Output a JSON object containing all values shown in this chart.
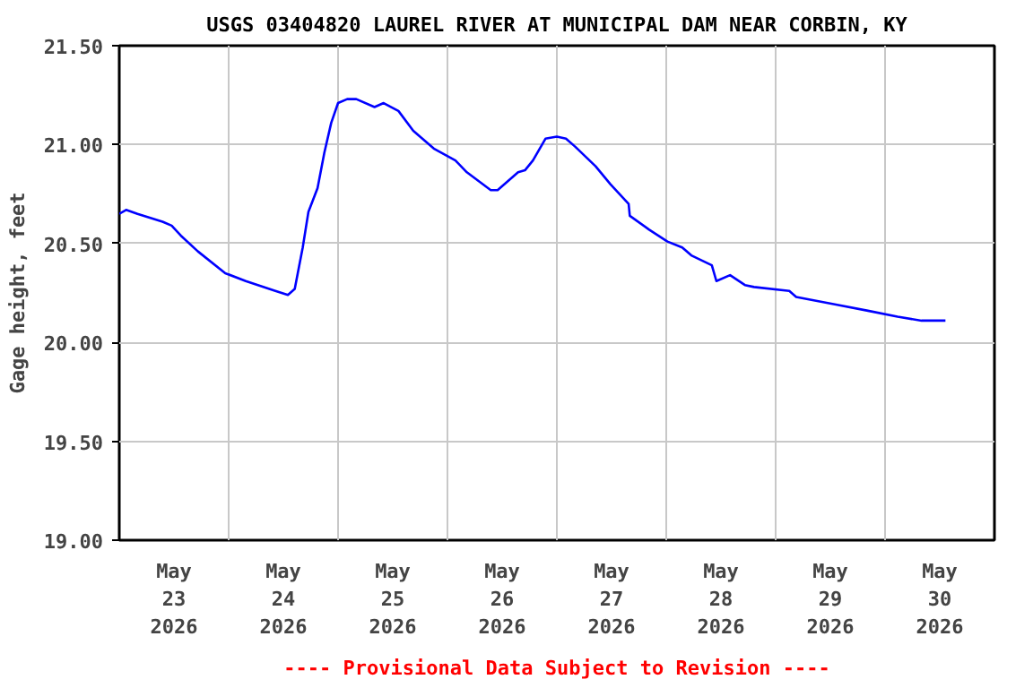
{
  "chart_data": {
    "type": "line",
    "title": "USGS 03404820 LAUREL RIVER AT MUNICIPAL DAM NEAR CORBIN, KY",
    "ylabel": "Gage height, feet",
    "annotations": [
      "---- Provisional Data Subject to Revision ----"
    ],
    "x": [
      "2026-05-23T00:00",
      "2026-05-23T01:30",
      "2026-05-23T04:00",
      "2026-05-23T09:30",
      "2026-05-23T11:30",
      "2026-05-23T13:30",
      "2026-05-23T17:15",
      "2026-05-23T23:15",
      "2026-05-24T03:45",
      "2026-05-24T10:15",
      "2026-05-24T13:00",
      "2026-05-24T14:30",
      "2026-05-24T16:15",
      "2026-05-24T17:30",
      "2026-05-24T19:30",
      "2026-05-24T21:00",
      "2026-05-24T22:30",
      "2026-05-25T00:00",
      "2026-05-25T02:00",
      "2026-05-25T04:00",
      "2026-05-25T08:00",
      "2026-05-25T10:00",
      "2026-05-25T13:15",
      "2026-05-25T16:30",
      "2026-05-25T21:00",
      "2026-05-26T01:45",
      "2026-05-26T04:15",
      "2026-05-26T09:30",
      "2026-05-26T11:00",
      "2026-05-26T15:30",
      "2026-05-26T17:00",
      "2026-05-26T18:45",
      "2026-05-26T21:30",
      "2026-05-27T00:00",
      "2026-05-27T02:00",
      "2026-05-27T04:00",
      "2026-05-27T08:30",
      "2026-05-27T11:45",
      "2026-05-27T15:45",
      "2026-05-27T16:00",
      "2026-05-27T20:15",
      "2026-05-28T00:15",
      "2026-05-28T03:30",
      "2026-05-28T05:30",
      "2026-05-28T10:00",
      "2026-05-28T11:00",
      "2026-05-28T14:00",
      "2026-05-28T17:15",
      "2026-05-28T19:15",
      "2026-05-29T03:00",
      "2026-05-29T04:30",
      "2026-05-29T13:30",
      "2026-05-29T20:15",
      "2026-05-30T02:45",
      "2026-05-30T08:00",
      "2026-05-30T13:15"
    ],
    "series": [
      {
        "color": "#0000ff",
        "values": [
          20.65,
          20.67,
          20.65,
          20.61,
          20.59,
          20.54,
          20.46,
          20.35,
          20.31,
          20.26,
          20.24,
          20.27,
          20.48,
          20.66,
          20.78,
          20.96,
          21.11,
          21.21,
          21.23,
          21.23,
          21.19,
          21.21,
          21.17,
          21.07,
          20.98,
          20.92,
          20.86,
          20.77,
          20.77,
          20.86,
          20.87,
          20.92,
          21.03,
          21.04,
          21.03,
          20.99,
          20.89,
          20.8,
          20.7,
          20.64,
          20.57,
          20.51,
          20.48,
          20.44,
          20.39,
          20.31,
          20.34,
          20.29,
          20.28,
          20.26,
          20.23,
          20.19,
          20.16,
          20.13,
          20.11,
          20.11
        ]
      }
    ],
    "xlim": [
      "2026-05-23T00:00",
      "2026-05-31T00:00"
    ],
    "xticks": [
      {
        "value": "2026-05-23T12:00",
        "label": "May\n23\n2026"
      },
      {
        "value": "2026-05-24T00:00",
        "label": null
      },
      {
        "value": "2026-05-24T12:00",
        "label": "May\n24\n2026"
      },
      {
        "value": "2026-05-25T00:00",
        "label": null
      },
      {
        "value": "2026-05-25T12:00",
        "label": "May\n25\n2026"
      },
      {
        "value": "2026-05-26T00:00",
        "label": null
      },
      {
        "value": "2026-05-26T12:00",
        "label": "May\n26\n2026"
      },
      {
        "value": "2026-05-27T00:00",
        "label": null
      },
      {
        "value": "2026-05-27T12:00",
        "label": "May\n27\n2026"
      },
      {
        "value": "2026-05-28T00:00",
        "label": null
      },
      {
        "value": "2026-05-28T12:00",
        "label": "May\n28\n2026"
      },
      {
        "value": "2026-05-29T00:00",
        "label": null
      },
      {
        "value": "2026-05-29T12:00",
        "label": "May\n29\n2026"
      },
      {
        "value": "2026-05-30T00:00",
        "label": null
      },
      {
        "value": "2026-05-30T12:00",
        "label": "May\n30\n2026"
      }
    ],
    "ylim": [
      19.0,
      21.5
    ],
    "yticks": [
      {
        "value": 19.0,
        "label": "19.00"
      },
      {
        "value": 19.5,
        "label": "19.50"
      },
      {
        "value": 20.0,
        "label": "20.00"
      },
      {
        "value": 20.5,
        "label": "20.50"
      },
      {
        "value": 21.0,
        "label": "21.00"
      },
      {
        "value": 21.5,
        "label": "21.50"
      }
    ],
    "grid": true,
    "marker": "none",
    "line_style": "solid"
  }
}
